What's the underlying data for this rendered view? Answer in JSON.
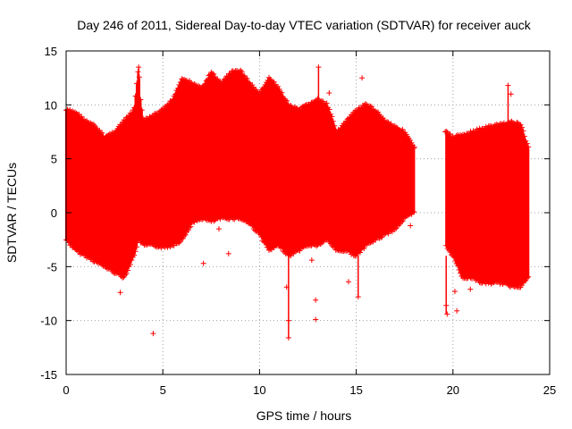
{
  "chart_data": {
    "type": "scatter",
    "title": "Day 246 of 2011, Sidereal Day-to-day VTEC variation (SDTVAR) for receiver auck",
    "xlabel": "GPS time / hours",
    "ylabel": "SDTVAR / TECUs",
    "xlim": [
      0,
      25
    ],
    "ylim": [
      -15,
      15
    ],
    "xticks": [
      0,
      5,
      10,
      15,
      20,
      25
    ],
    "xtick_labels": [
      "0",
      "5",
      "10",
      "15",
      "20",
      "25"
    ],
    "yticks": [
      -15,
      -10,
      -5,
      0,
      5,
      10,
      15
    ],
    "ytick_labels": [
      "-15",
      "-10",
      "-5",
      "0",
      "5",
      "10",
      "15"
    ],
    "grid": true,
    "marker": "+",
    "series": [
      {
        "name": "SDTVAR",
        "color": "#ff0000",
        "upper_envelope": {
          "x": [
            0,
            0.5,
            1.0,
            1.5,
            2.0,
            2.5,
            3.0,
            3.5,
            3.75,
            3.85,
            4.0,
            4.5,
            5.0,
            5.5,
            6.0,
            6.5,
            7.0,
            7.5,
            8.0,
            8.5,
            9.0,
            9.5,
            10.0,
            10.5,
            11.0,
            11.5,
            12.0,
            12.5,
            13.0,
            13.5,
            14.0,
            14.5,
            15.0,
            15.5,
            16.0,
            16.5,
            17.0,
            17.5,
            18.0,
            19.6,
            20.0,
            20.5,
            21.0,
            21.5,
            22.0,
            22.5,
            23.0,
            23.5,
            23.9
          ],
          "values": [
            9.5,
            9.3,
            8.5,
            8.0,
            7.0,
            7.5,
            8.5,
            9.5,
            13.5,
            10.5,
            8.5,
            9.0,
            9.5,
            10.5,
            12.5,
            12.0,
            11.5,
            13.0,
            12.0,
            13.0,
            13.2,
            12.0,
            11.0,
            12.5,
            11.5,
            10.0,
            9.5,
            10.0,
            10.5,
            10.0,
            7.5,
            8.5,
            9.5,
            10.0,
            9.5,
            8.5,
            8.0,
            7.5,
            6.0,
            7.5,
            7.0,
            7.2,
            7.5,
            7.8,
            8.0,
            8.2,
            8.4,
            8.2,
            6.0
          ]
        },
        "lower_envelope": {
          "x": [
            0,
            0.5,
            1.0,
            1.5,
            2.0,
            2.5,
            3.0,
            3.5,
            3.75,
            4.0,
            4.5,
            5.0,
            5.5,
            6.0,
            6.5,
            7.0,
            7.5,
            8.0,
            8.5,
            9.0,
            9.5,
            10.0,
            10.5,
            11.0,
            11.5,
            12.0,
            12.5,
            13.0,
            13.5,
            14.0,
            14.5,
            15.0,
            15.5,
            16.0,
            16.5,
            17.0,
            17.5,
            18.0,
            19.6,
            20.0,
            20.5,
            21.0,
            21.5,
            22.0,
            22.5,
            23.0,
            23.5,
            23.9
          ],
          "values": [
            -2.5,
            -3.5,
            -4.0,
            -4.5,
            -5.0,
            -5.5,
            -6.0,
            -4.0,
            -2.5,
            -3.0,
            -3.0,
            -3.2,
            -3.0,
            -2.5,
            -1.0,
            -0.5,
            -0.8,
            -0.5,
            -0.5,
            -0.5,
            -1.0,
            -2.0,
            -3.5,
            -3.0,
            -4.0,
            -3.5,
            -3.0,
            -3.0,
            -2.5,
            -3.5,
            -3.5,
            -4.0,
            -3.0,
            -2.5,
            -2.0,
            -1.5,
            -0.5,
            0.0,
            -3.0,
            -4.0,
            -6.0,
            -6.0,
            -6.5,
            -6.5,
            -6.5,
            -6.8,
            -6.8,
            -6.0
          ]
        },
        "gaps": [
          [
            18.0,
            19.6
          ]
        ],
        "points": [
          {
            "x": 2.8,
            "y": -7.4
          },
          {
            "x": 4.5,
            "y": -11.2
          },
          {
            "x": 5.3,
            "y": 1.7
          },
          {
            "x": 7.1,
            "y": -4.7
          },
          {
            "x": 7.9,
            "y": -1.5
          },
          {
            "x": 8.4,
            "y": -3.8
          },
          {
            "x": 10.4,
            "y": -3.2
          },
          {
            "x": 11.5,
            "y": -11.6
          },
          {
            "x": 11.5,
            "y": -10.0
          },
          {
            "x": 11.4,
            "y": -6.9
          },
          {
            "x": 12.9,
            "y": -9.9
          },
          {
            "x": 12.9,
            "y": -8.1
          },
          {
            "x": 12.7,
            "y": -4.4
          },
          {
            "x": 13.05,
            "y": 13.5
          },
          {
            "x": 13.6,
            "y": 11.1
          },
          {
            "x": 14.6,
            "y": -6.4
          },
          {
            "x": 15.3,
            "y": 12.5
          },
          {
            "x": 15.5,
            "y": 9.8
          },
          {
            "x": 15.1,
            "y": -7.8
          },
          {
            "x": 3.75,
            "y": 13.5
          },
          {
            "x": 19.6,
            "y": 7.5
          },
          {
            "x": 19.7,
            "y": -9.4
          },
          {
            "x": 19.65,
            "y": -8.6
          },
          {
            "x": 20.1,
            "y": -7.3
          },
          {
            "x": 20.2,
            "y": -9.1
          },
          {
            "x": 20.9,
            "y": -7.1
          },
          {
            "x": 21.5,
            "y": -6.0
          },
          {
            "x": 22.3,
            "y": -5.8
          },
          {
            "x": 22.85,
            "y": 11.8
          },
          {
            "x": 23.0,
            "y": 11.0
          },
          {
            "x": 23.3,
            "y": 4.0
          },
          {
            "x": 18.0,
            "y": 6.1
          },
          {
            "x": 17.8,
            "y": -1.2
          }
        ]
      }
    ]
  }
}
